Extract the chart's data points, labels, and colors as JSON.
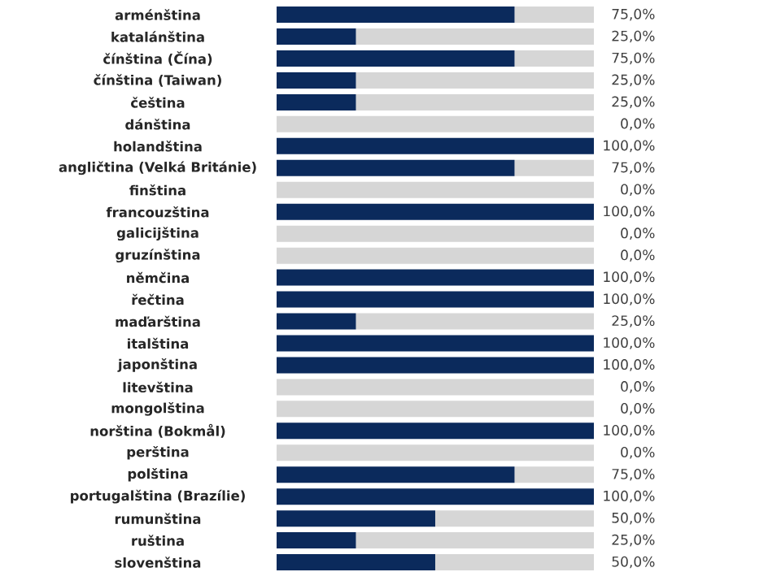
{
  "chart_data": {
    "type": "bar",
    "orientation": "horizontal",
    "stacked": true,
    "tick_labels": "y",
    "categories": [
      "arménština",
      "katalánština",
      "čínština (Čína)",
      "čínština (Taiwan)",
      "čeština",
      "dánština",
      "holandština",
      "angličtina (Velká Británie)",
      "finština",
      "francouzština",
      "galicijština",
      "gruzínština",
      "němčina",
      "řečtina",
      "maďarština",
      "italština",
      "japonština",
      "litevština",
      "mongolština",
      "norština (Bokmål)",
      "perština",
      "polština",
      "portugalština (Brazílie)",
      "rumunština",
      "ruština",
      "slovenština"
    ],
    "xlim": [
      0,
      100
    ],
    "series": [
      {
        "color": "#0b2a5c",
        "values": [
          75,
          25,
          75,
          25,
          25,
          0,
          100,
          75,
          0,
          100,
          0,
          0,
          100,
          100,
          25,
          100,
          100,
          0,
          0,
          100,
          0,
          75,
          100,
          50,
          25,
          50
        ],
        "value_labels": [
          "75,0%",
          "25,0%",
          "75,0%",
          "25,0%",
          "25,0%",
          "0,0%",
          "100,0%",
          "75,0%",
          "0,0%",
          "100,0%",
          "0,0%",
          "0,0%",
          "100,0%",
          "100,0%",
          "25,0%",
          "100,0%",
          "100,0%",
          "0,0%",
          "0,0%",
          "100,0%",
          "0,0%",
          "75,0%",
          "100,0%",
          "50,0%",
          "25,0%",
          "50,0%"
        ]
      },
      {
        "color": "#d6d6d6",
        "values": [
          25,
          75,
          25,
          75,
          75,
          100,
          0,
          25,
          100,
          0,
          100,
          100,
          0,
          0,
          75,
          0,
          0,
          100,
          100,
          0,
          100,
          25,
          0,
          50,
          75,
          50
        ]
      }
    ]
  }
}
